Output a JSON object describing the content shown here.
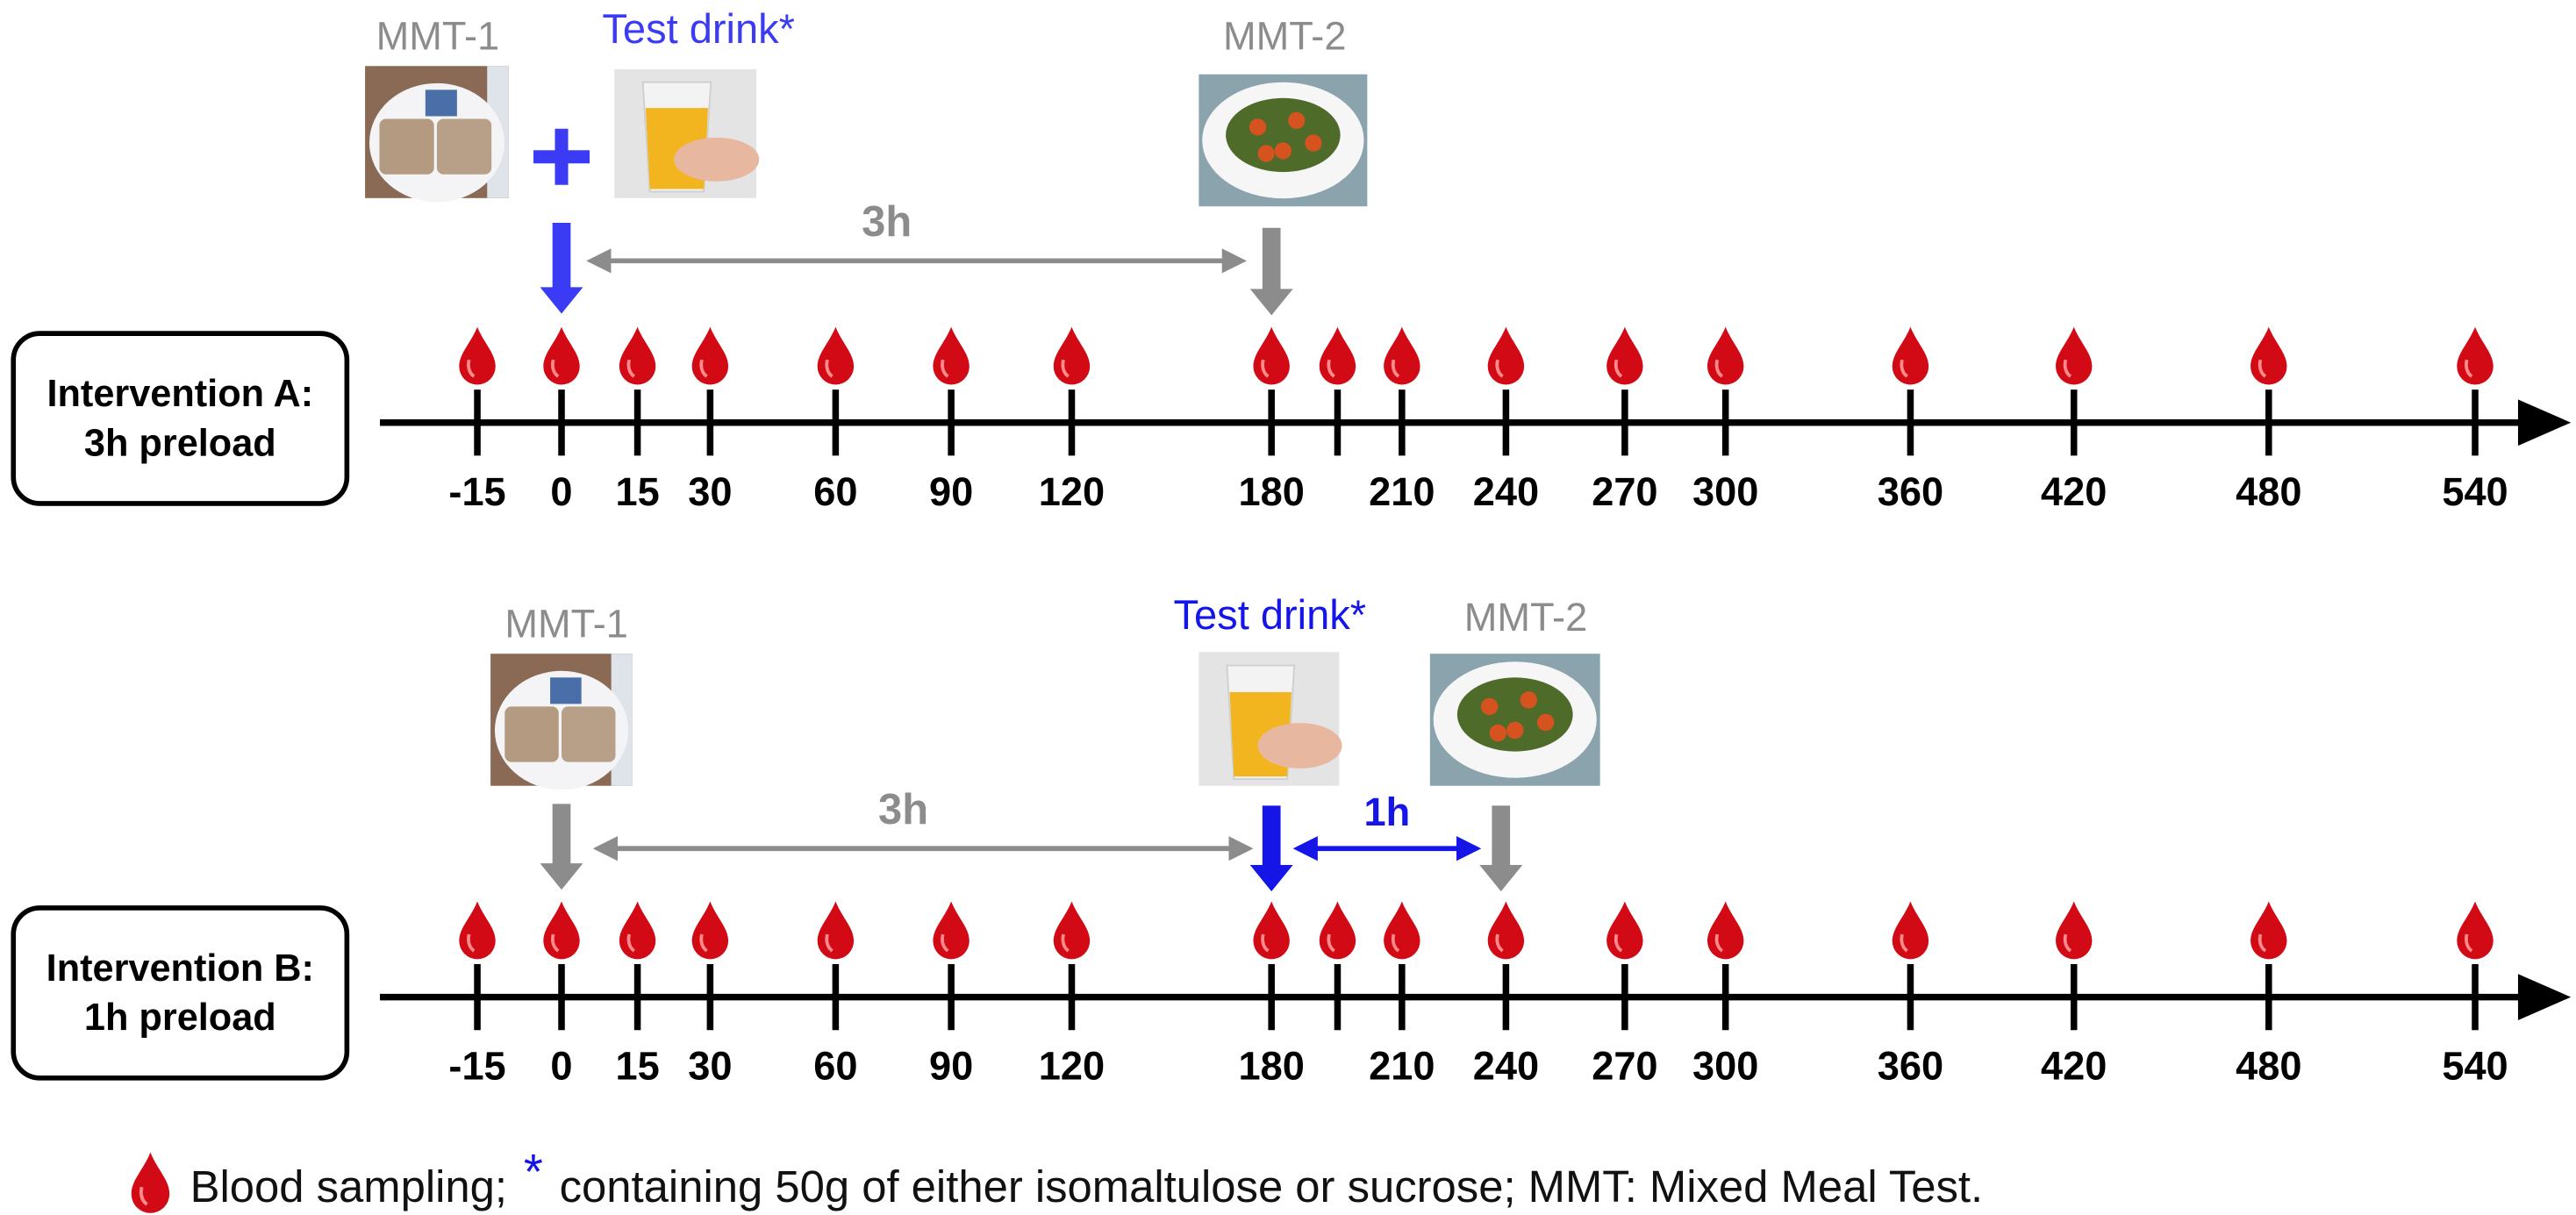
{
  "interventions": [
    {
      "label_line1": "Intervention A:",
      "label_line2": "3h preload",
      "ticks": [
        "-15",
        "0",
        "15",
        "30",
        "60",
        "90",
        "120",
        "180",
        "210",
        "240",
        "270",
        "300",
        "360",
        "420",
        "480",
        "540"
      ],
      "annotations": {
        "mmt1": "MMT-1",
        "test_drink": "Test drink*",
        "mmt2": "MMT-2",
        "interval": "3h"
      }
    },
    {
      "label_line1": "Intervention B:",
      "label_line2": "1h preload",
      "ticks": [
        "-15",
        "0",
        "15",
        "30",
        "60",
        "90",
        "120",
        "180",
        "210",
        "240",
        "270",
        "300",
        "360",
        "420",
        "480",
        "540"
      ],
      "annotations": {
        "mmt1": "MMT-1",
        "test_drink": "Test drink*",
        "mmt2": "MMT-2",
        "interval_1": "3h",
        "interval_2": "1h"
      }
    }
  ],
  "legend": {
    "text_before": "Blood sampling;",
    "asterisk": "*",
    "text_after": "containing 50g of either isomaltulose or sucrose; MMT: Mixed Meal Test."
  }
}
